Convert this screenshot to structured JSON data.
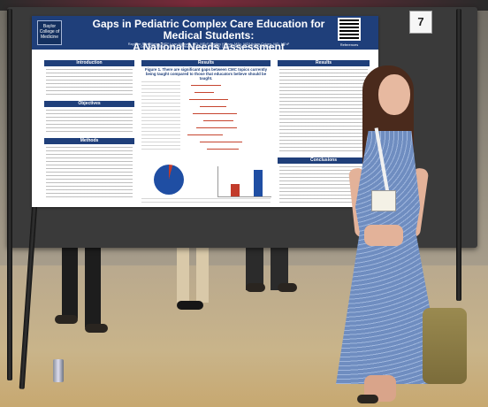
{
  "board": {
    "number": "7"
  },
  "poster": {
    "logo": "Baylor College of Medicine",
    "title_line1": "Gaps in Pediatric Complex Care Education for Medical Students:",
    "title_line2": "A National Needs Assessment",
    "authors": "Rayleen Schultheiss, MD¹  Loan Nguyen, MD, MEd¹  Shelley Kumar, MSc, MD¹  Adam Cohen, MD, MEd¹",
    "affiliation": "Dept. of Pediatrics, Division of Pediatric Hospital Medicine, Division of Academic General Pediatrics",
    "qr_label": "References",
    "sections": {
      "introduction": "Introduction",
      "objectives": "Objectives",
      "methods": "Methods",
      "results_center": "Results",
      "results_right": "Results",
      "conclusions": "Conclusions"
    },
    "figure1_title": "Figure 1. There are significant gaps between CMC topics currently being taught compared to those that educators believe should be taught.",
    "figure2_label": "Pie chart",
    "figure3_label": "Bar chart"
  },
  "colors": {
    "poster_header": "#1f3f7a",
    "accent_red": "#c23b2b",
    "accent_blue": "#1f4ea3",
    "dress": "#7d98c8"
  }
}
